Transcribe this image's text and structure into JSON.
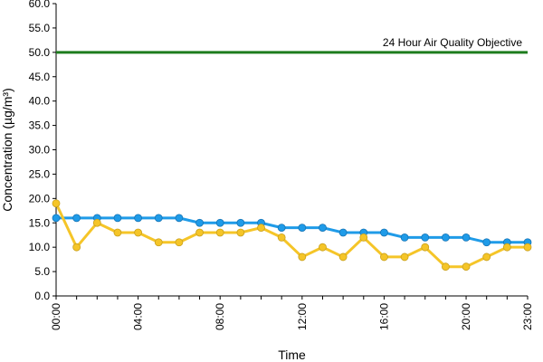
{
  "chart_data": {
    "type": "line",
    "title": "",
    "xlabel": "Time",
    "ylabel": "Concentration (µg/m³)",
    "ylim": [
      0,
      60
    ],
    "y_ticks": [
      "0.0",
      "5.0",
      "10.0",
      "15.0",
      "20.0",
      "25.0",
      "30.0",
      "35.0",
      "40.0",
      "45.0",
      "50.0",
      "55.0",
      "60.0"
    ],
    "x": [
      0,
      1,
      2,
      3,
      4,
      5,
      6,
      7,
      8,
      9,
      10,
      11,
      12,
      13,
      14,
      15,
      16,
      17,
      18,
      19,
      20,
      21,
      22,
      23
    ],
    "x_tick_labels": [
      {
        "x": 0,
        "label": "00:00"
      },
      {
        "x": 4,
        "label": "04:00"
      },
      {
        "x": 8,
        "label": "08:00"
      },
      {
        "x": 12,
        "label": "12:00"
      },
      {
        "x": 16,
        "label": "16:00"
      },
      {
        "x": 20,
        "label": "20:00"
      },
      {
        "x": 23,
        "label": "23:00"
      }
    ],
    "grid": false,
    "legend": "none",
    "series": [
      {
        "color": "#1f9be8",
        "values": [
          16,
          16,
          16,
          16,
          16,
          16,
          16,
          15,
          15,
          15,
          15,
          14,
          14,
          14,
          13,
          13,
          13,
          12,
          12,
          12,
          12,
          11,
          11,
          11
        ]
      },
      {
        "color": "#f5c528",
        "values": [
          19,
          10,
          15,
          13,
          13,
          11,
          11,
          13,
          13,
          13,
          14,
          12,
          8,
          10,
          8,
          12,
          8,
          8,
          10,
          6,
          6,
          8,
          10,
          10
        ]
      }
    ],
    "reference_line": {
      "value": 50,
      "label": "24 Hour Air Quality Objective",
      "color": "#1e7d1e"
    }
  }
}
